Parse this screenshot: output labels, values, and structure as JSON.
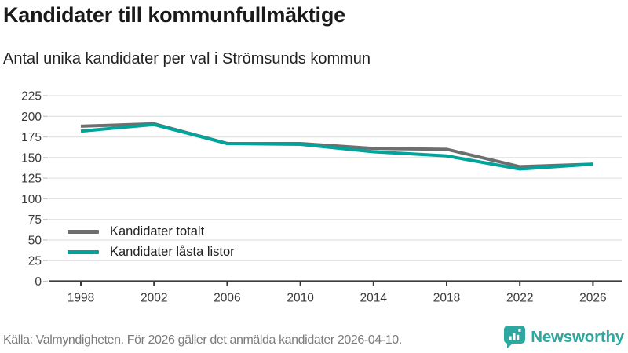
{
  "header": {
    "title": "Kandidater till kommunfullmäktige",
    "subtitle": "Antal unika kandidater per val i Strömsunds kommun"
  },
  "chart_data": {
    "type": "line",
    "categories": [
      "1998",
      "2002",
      "2006",
      "2010",
      "2014",
      "2018",
      "2022",
      "2026"
    ],
    "series": [
      {
        "name": "Kandidater totalt",
        "color": "#6e6e6e",
        "values": [
          188,
          191,
          167,
          167,
          161,
          160,
          139,
          142
        ]
      },
      {
        "name": "Kandidater låsta listor",
        "color": "#00a49b",
        "values": [
          182,
          190,
          167,
          166,
          157,
          152,
          136,
          142
        ]
      }
    ],
    "title": "Kandidater till kommunfullmäktige",
    "subtitle": "Antal unika kandidater per val i Strömsunds kommun",
    "xlabel": "",
    "ylabel": "",
    "ylim": [
      0,
      225
    ],
    "ytick_step": 25,
    "yticks": [
      0,
      25,
      50,
      75,
      100,
      125,
      150,
      175,
      200,
      225
    ],
    "grid": true,
    "legend_position": "inside-bottom-left"
  },
  "footer": {
    "source": "Källa: Valmyndigheten. För 2026 gäller det anmälda kandidater 2026-04-10.",
    "brand": "Newsworthy",
    "brand_color": "#2da79f"
  },
  "style": {
    "axis_text_color": "#3a3a3a",
    "gridline_color": "#e3e3e3",
    "axis_line_color": "#3c3c3c",
    "minor_tick_color": "#c9c9c9"
  }
}
